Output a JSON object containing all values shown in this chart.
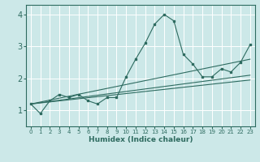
{
  "xlabel": "Humidex (Indice chaleur)",
  "ylabel": "",
  "bg_color": "#cce8e8",
  "line_color": "#2e6b60",
  "grid_color": "#b0d8d8",
  "xlim": [
    -0.5,
    23.5
  ],
  "ylim": [
    0.5,
    4.3
  ],
  "xticks": [
    0,
    1,
    2,
    3,
    4,
    5,
    6,
    7,
    8,
    9,
    10,
    11,
    12,
    13,
    14,
    15,
    16,
    17,
    18,
    19,
    20,
    21,
    22,
    23
  ],
  "yticks": [
    1,
    2,
    3,
    4
  ],
  "series1_x": [
    0,
    1,
    2,
    3,
    4,
    5,
    6,
    7,
    8,
    9,
    10,
    11,
    12,
    13,
    14,
    15,
    16,
    17,
    18,
    19,
    20,
    21,
    22,
    23
  ],
  "series1_y": [
    1.2,
    0.9,
    1.3,
    1.5,
    1.4,
    1.5,
    1.3,
    1.2,
    1.4,
    1.4,
    2.05,
    2.6,
    3.1,
    3.7,
    4.0,
    3.8,
    2.75,
    2.45,
    2.05,
    2.05,
    2.3,
    2.2,
    2.5,
    3.05
  ],
  "trend1_x": [
    0,
    23
  ],
  "trend1_y": [
    1.2,
    2.6
  ],
  "trend2_x": [
    0,
    23
  ],
  "trend2_y": [
    1.2,
    2.1
  ],
  "trend3_x": [
    0,
    23
  ],
  "trend3_y": [
    1.2,
    1.95
  ]
}
